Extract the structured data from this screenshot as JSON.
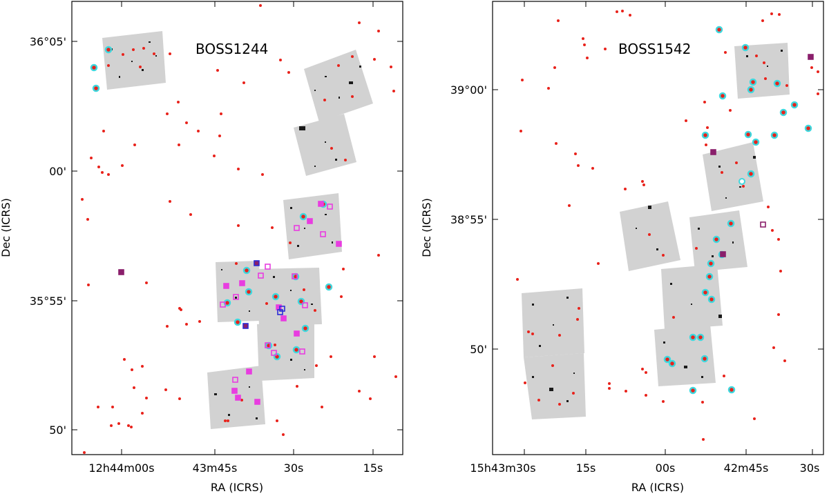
{
  "colors": {
    "background": "#ffffff",
    "frame": "#000000",
    "star_dot": "#e8221b",
    "cyan_circle": "#3fd8de",
    "magenta_square": "#e83de0",
    "purple_square": "#8a1f6b",
    "blue_square": "#2b2bd6",
    "image_gray": "#cfcfcf",
    "image_dark": "#1a1a1a"
  },
  "icons": {
    "star_marker": "red-dot",
    "object_marker": "cyan-circle",
    "selected_marker": "magenta-square"
  },
  "panels": [
    {
      "title": "BOSS1244",
      "xlabel": "RA (ICRS)",
      "ylabel": "Dec (ICRS)",
      "x_ticks": [
        "12h44m00s",
        "43m45s",
        "30s",
        "15s"
      ],
      "y_ticks": [
        "36°05'",
        "00'",
        "35°55'",
        "50'"
      ]
    },
    {
      "title": "BOSS1542",
      "xlabel": "RA (ICRS)",
      "ylabel": "Dec (ICRS)",
      "x_ticks": [
        "15h43m30s",
        "15s",
        "00s",
        "42m45s",
        "30s"
      ],
      "y_ticks": [
        "39°00'",
        "38°55'",
        "50'"
      ]
    }
  ]
}
